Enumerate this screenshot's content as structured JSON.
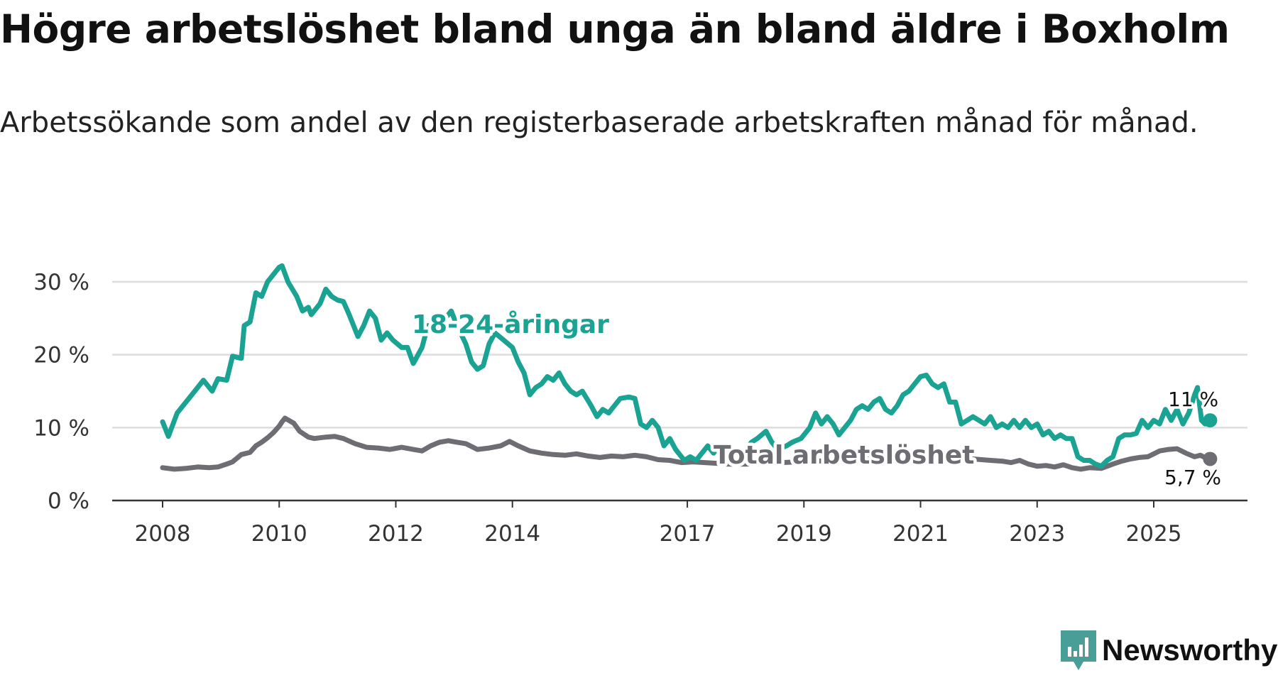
{
  "title": "Högre arbetslöshet bland unga än bland äldre i Boxholm",
  "subtitle": "Arbetssökande som andel av den registerbaserade arbetskraften månad för månad.",
  "brand": {
    "name": "Newsworthy",
    "icon": "newsworthy-logo-icon",
    "color": "#4a9e98"
  },
  "colors": {
    "youth": "#1aa392",
    "total": "#6e6d73",
    "grid": "#dddddd",
    "axis": "#333333"
  },
  "chart_data": {
    "type": "line",
    "title": "Högre arbetslöshet bland unga än bland äldre i Boxholm",
    "subtitle": "Arbetssökande som andel av den registerbaserade arbetskraften månad för månad.",
    "xlabel": "",
    "ylabel": "",
    "xlim": [
      2008,
      2026
    ],
    "ylim": [
      0,
      32
    ],
    "x_ticks": [
      2008,
      2010,
      2012,
      2014,
      2017,
      2019,
      2021,
      2023,
      2025
    ],
    "x_tick_labels": [
      "2008",
      "2010",
      "2012",
      "2014",
      "2017",
      "2019",
      "2021",
      "2023",
      "2025"
    ],
    "y_ticks": [
      0,
      10,
      20,
      30
    ],
    "y_tick_labels": [
      "0 %",
      "10 %",
      "20 %",
      "30 %"
    ],
    "grid": true,
    "series": [
      {
        "name": "18-24-åringar",
        "label": "18-24-åringar",
        "end_label": "11 %",
        "color": "#1aa392",
        "points": [
          [
            2008.0,
            10.8
          ],
          [
            2008.1,
            8.8
          ],
          [
            2008.25,
            12.0
          ],
          [
            2008.45,
            14.0
          ],
          [
            2008.6,
            15.5
          ],
          [
            2008.7,
            16.5
          ],
          [
            2008.85,
            15.0
          ],
          [
            2008.95,
            16.7
          ],
          [
            2009.1,
            16.5
          ],
          [
            2009.2,
            19.8
          ],
          [
            2009.35,
            19.5
          ],
          [
            2009.4,
            24.0
          ],
          [
            2009.5,
            24.5
          ],
          [
            2009.6,
            28.5
          ],
          [
            2009.7,
            28.0
          ],
          [
            2009.8,
            30.0
          ],
          [
            2009.9,
            31.0
          ],
          [
            2010.0,
            32.0
          ],
          [
            2010.05,
            32.2
          ],
          [
            2010.15,
            30.0
          ],
          [
            2010.3,
            28.0
          ],
          [
            2010.4,
            26.0
          ],
          [
            2010.5,
            26.5
          ],
          [
            2010.55,
            25.5
          ],
          [
            2010.7,
            27.0
          ],
          [
            2010.8,
            29.0
          ],
          [
            2010.9,
            28.0
          ],
          [
            2011.0,
            27.5
          ],
          [
            2011.1,
            27.3
          ],
          [
            2011.2,
            25.5
          ],
          [
            2011.35,
            22.5
          ],
          [
            2011.45,
            24.0
          ],
          [
            2011.55,
            26.0
          ],
          [
            2011.65,
            25.0
          ],
          [
            2011.75,
            22.0
          ],
          [
            2011.85,
            23.0
          ],
          [
            2011.95,
            22.0
          ],
          [
            2012.1,
            21.0
          ],
          [
            2012.2,
            21.0
          ],
          [
            2012.3,
            18.8
          ],
          [
            2012.45,
            21.0
          ],
          [
            2012.55,
            24.0
          ],
          [
            2012.7,
            23.0
          ],
          [
            2012.85,
            25.0
          ],
          [
            2012.95,
            26.0
          ],
          [
            2013.05,
            24.0
          ],
          [
            2013.2,
            21.5
          ],
          [
            2013.3,
            19.0
          ],
          [
            2013.4,
            18.0
          ],
          [
            2013.5,
            18.5
          ],
          [
            2013.6,
            21.5
          ],
          [
            2013.7,
            23.0
          ],
          [
            2013.85,
            22.0
          ],
          [
            2014.0,
            21.0
          ],
          [
            2014.1,
            19.0
          ],
          [
            2014.2,
            17.5
          ],
          [
            2014.3,
            14.5
          ],
          [
            2014.4,
            15.5
          ],
          [
            2014.5,
            16.0
          ],
          [
            2014.6,
            17.0
          ],
          [
            2014.7,
            16.5
          ],
          [
            2014.8,
            17.5
          ],
          [
            2014.9,
            16.0
          ],
          [
            2015.0,
            15.0
          ],
          [
            2015.1,
            14.5
          ],
          [
            2015.2,
            15.0
          ],
          [
            2015.35,
            13.0
          ],
          [
            2015.45,
            11.5
          ],
          [
            2015.55,
            12.5
          ],
          [
            2015.65,
            12.0
          ],
          [
            2015.75,
            13.0
          ],
          [
            2015.85,
            14.0
          ],
          [
            2016.0,
            14.2
          ],
          [
            2016.1,
            14.0
          ],
          [
            2016.2,
            10.5
          ],
          [
            2016.3,
            10.0
          ],
          [
            2016.4,
            11.0
          ],
          [
            2016.5,
            10.0
          ],
          [
            2016.6,
            7.5
          ],
          [
            2016.7,
            8.5
          ],
          [
            2016.8,
            7.0
          ],
          [
            2016.9,
            6.0
          ],
          [
            2016.95,
            5.5
          ],
          [
            2017.05,
            6.0
          ],
          [
            2017.15,
            5.5
          ],
          [
            2017.25,
            6.5
          ],
          [
            2017.35,
            7.5
          ],
          [
            2017.45,
            6.5
          ],
          [
            2017.55,
            7.5
          ],
          [
            2017.7,
            7.5
          ],
          [
            2017.85,
            6.0
          ],
          [
            2018.0,
            7.0
          ],
          [
            2018.1,
            8.0
          ],
          [
            2018.2,
            8.5
          ],
          [
            2018.35,
            9.5
          ],
          [
            2018.45,
            8.0
          ],
          [
            2018.55,
            7.0
          ],
          [
            2018.7,
            7.5
          ],
          [
            2018.8,
            8.0
          ],
          [
            2018.95,
            8.5
          ],
          [
            2019.1,
            10.0
          ],
          [
            2019.2,
            12.0
          ],
          [
            2019.3,
            10.5
          ],
          [
            2019.4,
            11.5
          ],
          [
            2019.5,
            10.5
          ],
          [
            2019.6,
            9.0
          ],
          [
            2019.7,
            10.0
          ],
          [
            2019.8,
            11.0
          ],
          [
            2019.9,
            12.5
          ],
          [
            2020.0,
            13.0
          ],
          [
            2020.1,
            12.5
          ],
          [
            2020.2,
            13.5
          ],
          [
            2020.3,
            14.0
          ],
          [
            2020.4,
            12.5
          ],
          [
            2020.5,
            12.0
          ],
          [
            2020.6,
            13.0
          ],
          [
            2020.7,
            14.5
          ],
          [
            2020.8,
            15.0
          ],
          [
            2020.9,
            16.0
          ],
          [
            2021.0,
            17.0
          ],
          [
            2021.1,
            17.2
          ],
          [
            2021.2,
            16.0
          ],
          [
            2021.3,
            15.5
          ],
          [
            2021.4,
            16.0
          ],
          [
            2021.5,
            13.5
          ],
          [
            2021.6,
            13.5
          ],
          [
            2021.7,
            10.5
          ],
          [
            2021.8,
            11.0
          ],
          [
            2021.9,
            11.5
          ],
          [
            2022.0,
            11.0
          ],
          [
            2022.1,
            10.5
          ],
          [
            2022.2,
            11.5
          ],
          [
            2022.3,
            10.0
          ],
          [
            2022.4,
            10.5
          ],
          [
            2022.5,
            10.0
          ],
          [
            2022.6,
            11.0
          ],
          [
            2022.7,
            10.0
          ],
          [
            2022.8,
            11.0
          ],
          [
            2022.9,
            10.0
          ],
          [
            2023.0,
            10.5
          ],
          [
            2023.1,
            9.0
          ],
          [
            2023.2,
            9.5
          ],
          [
            2023.3,
            8.5
          ],
          [
            2023.4,
            9.0
          ],
          [
            2023.5,
            8.5
          ],
          [
            2023.6,
            8.5
          ],
          [
            2023.7,
            6.0
          ],
          [
            2023.8,
            5.5
          ],
          [
            2023.9,
            5.5
          ],
          [
            2024.0,
            5.0
          ],
          [
            2024.1,
            4.7
          ],
          [
            2024.2,
            5.5
          ],
          [
            2024.3,
            6.0
          ],
          [
            2024.4,
            8.5
          ],
          [
            2024.5,
            9.0
          ],
          [
            2024.6,
            9.0
          ],
          [
            2024.7,
            9.2
          ],
          [
            2024.8,
            11.0
          ],
          [
            2024.9,
            10.0
          ],
          [
            2025.0,
            11.0
          ],
          [
            2025.1,
            10.5
          ],
          [
            2025.2,
            12.5
          ],
          [
            2025.3,
            11.0
          ],
          [
            2025.4,
            12.5
          ],
          [
            2025.5,
            10.5
          ],
          [
            2025.6,
            12.0
          ],
          [
            2025.7,
            14.5
          ],
          [
            2025.75,
            15.5
          ],
          [
            2025.82,
            11.0
          ],
          [
            2025.88,
            10.5
          ],
          [
            2025.93,
            11.0
          ]
        ]
      },
      {
        "name": "Total arbetslöshet",
        "label": "Total arbetslöshet",
        "end_label": "5,7 %",
        "color": "#6e6d73",
        "points": [
          [
            2008.0,
            4.5
          ],
          [
            2008.2,
            4.3
          ],
          [
            2008.4,
            4.4
          ],
          [
            2008.6,
            4.6
          ],
          [
            2008.8,
            4.5
          ],
          [
            2008.95,
            4.6
          ],
          [
            2009.1,
            5.0
          ],
          [
            2009.2,
            5.3
          ],
          [
            2009.35,
            6.3
          ],
          [
            2009.5,
            6.6
          ],
          [
            2009.6,
            7.5
          ],
          [
            2009.7,
            8.0
          ],
          [
            2009.8,
            8.6
          ],
          [
            2009.9,
            9.3
          ],
          [
            2010.0,
            10.2
          ],
          [
            2010.05,
            10.8
          ],
          [
            2010.1,
            11.3
          ],
          [
            2010.25,
            10.6
          ],
          [
            2010.35,
            9.5
          ],
          [
            2010.5,
            8.7
          ],
          [
            2010.6,
            8.5
          ],
          [
            2010.7,
            8.6
          ],
          [
            2010.8,
            8.7
          ],
          [
            2010.95,
            8.8
          ],
          [
            2011.1,
            8.5
          ],
          [
            2011.3,
            7.8
          ],
          [
            2011.5,
            7.3
          ],
          [
            2011.7,
            7.2
          ],
          [
            2011.9,
            7.0
          ],
          [
            2012.1,
            7.3
          ],
          [
            2012.3,
            7.0
          ],
          [
            2012.45,
            6.8
          ],
          [
            2012.6,
            7.5
          ],
          [
            2012.75,
            8.0
          ],
          [
            2012.9,
            8.2
          ],
          [
            2013.05,
            8.0
          ],
          [
            2013.2,
            7.8
          ],
          [
            2013.4,
            7.0
          ],
          [
            2013.6,
            7.2
          ],
          [
            2013.8,
            7.5
          ],
          [
            2013.95,
            8.1
          ],
          [
            2014.1,
            7.5
          ],
          [
            2014.3,
            6.8
          ],
          [
            2014.5,
            6.5
          ],
          [
            2014.7,
            6.3
          ],
          [
            2014.9,
            6.2
          ],
          [
            2015.1,
            6.4
          ],
          [
            2015.3,
            6.1
          ],
          [
            2015.5,
            5.9
          ],
          [
            2015.7,
            6.1
          ],
          [
            2015.9,
            6.0
          ],
          [
            2016.1,
            6.2
          ],
          [
            2016.3,
            6.0
          ],
          [
            2016.5,
            5.6
          ],
          [
            2016.7,
            5.5
          ],
          [
            2016.9,
            5.2
          ],
          [
            2017.1,
            5.3
          ],
          [
            2017.3,
            5.2
          ],
          [
            2017.5,
            5.1
          ],
          [
            2017.7,
            5.0
          ],
          [
            2018.0,
            5.0
          ],
          [
            2018.3,
            5.1
          ],
          [
            2018.6,
            5.2
          ],
          [
            2018.9,
            5.3
          ],
          [
            2019.2,
            5.4
          ],
          [
            2019.5,
            5.5
          ],
          [
            2019.8,
            5.6
          ],
          [
            2020.1,
            5.7
          ],
          [
            2020.4,
            5.9
          ],
          [
            2020.7,
            6.0
          ],
          [
            2021.0,
            6.0
          ],
          [
            2021.3,
            5.9
          ],
          [
            2021.6,
            5.8
          ],
          [
            2021.9,
            5.7
          ],
          [
            2022.2,
            5.5
          ],
          [
            2022.4,
            5.4
          ],
          [
            2022.55,
            5.2
          ],
          [
            2022.7,
            5.5
          ],
          [
            2022.85,
            5.0
          ],
          [
            2023.0,
            4.7
          ],
          [
            2023.15,
            4.8
          ],
          [
            2023.3,
            4.6
          ],
          [
            2023.45,
            4.9
          ],
          [
            2023.6,
            4.5
          ],
          [
            2023.75,
            4.3
          ],
          [
            2023.9,
            4.5
          ],
          [
            2024.1,
            4.4
          ],
          [
            2024.3,
            5.0
          ],
          [
            2024.45,
            5.4
          ],
          [
            2024.6,
            5.7
          ],
          [
            2024.75,
            5.9
          ],
          [
            2024.9,
            6.0
          ],
          [
            2025.1,
            6.8
          ],
          [
            2025.25,
            7.0
          ],
          [
            2025.4,
            7.1
          ],
          [
            2025.55,
            6.5
          ],
          [
            2025.7,
            6.0
          ],
          [
            2025.8,
            6.2
          ],
          [
            2025.93,
            5.7
          ]
        ]
      }
    ]
  }
}
